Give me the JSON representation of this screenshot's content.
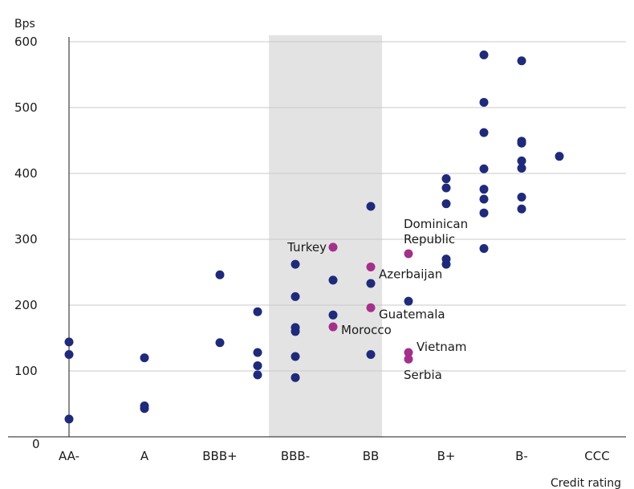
{
  "chart_data": {
    "type": "scatter",
    "ylabel": "Bps",
    "xlabel": "Credit rating",
    "categories": [
      "AA-",
      "A",
      "BBB+",
      "BBB-",
      "BB",
      "B+",
      "B-",
      "CCC"
    ],
    "ylim": [
      0,
      610
    ],
    "yticks": [
      0,
      100,
      200,
      300,
      400,
      500,
      600
    ],
    "grid": "horizontal",
    "highlight_band": {
      "from": 3.65,
      "to": 5.15,
      "color": "#e3e3e3"
    },
    "colors": {
      "default": "#1f2a7a",
      "highlight": "#a3318a"
    },
    "series": [
      {
        "points": [
          {
            "x": 1.0,
            "y": 144
          },
          {
            "x": 1.0,
            "y": 125
          },
          {
            "x": 1.0,
            "y": 27
          },
          {
            "x": 2.0,
            "y": 120
          },
          {
            "x": 2.0,
            "y": 47
          },
          {
            "x": 2.0,
            "y": 43
          },
          {
            "x": 3.0,
            "y": 246
          },
          {
            "x": 3.0,
            "y": 143
          },
          {
            "x": 3.5,
            "y": 190
          },
          {
            "x": 3.5,
            "y": 128
          },
          {
            "x": 3.5,
            "y": 108
          },
          {
            "x": 3.5,
            "y": 94
          },
          {
            "x": 4.0,
            "y": 262
          },
          {
            "x": 4.0,
            "y": 213
          },
          {
            "x": 4.0,
            "y": 166
          },
          {
            "x": 4.0,
            "y": 160
          },
          {
            "x": 4.0,
            "y": 122
          },
          {
            "x": 4.0,
            "y": 90
          },
          {
            "x": 4.5,
            "y": 238
          },
          {
            "x": 4.5,
            "y": 185
          },
          {
            "x": 5.0,
            "y": 350
          },
          {
            "x": 5.0,
            "y": 233
          },
          {
            "x": 5.0,
            "y": 125
          },
          {
            "x": 5.5,
            "y": 206
          },
          {
            "x": 6.0,
            "y": 392
          },
          {
            "x": 6.0,
            "y": 378
          },
          {
            "x": 6.0,
            "y": 354
          },
          {
            "x": 6.0,
            "y": 270
          },
          {
            "x": 6.0,
            "y": 262
          },
          {
            "x": 6.5,
            "y": 580
          },
          {
            "x": 6.5,
            "y": 508
          },
          {
            "x": 6.5,
            "y": 462
          },
          {
            "x": 6.5,
            "y": 407
          },
          {
            "x": 6.5,
            "y": 376
          },
          {
            "x": 6.5,
            "y": 361
          },
          {
            "x": 6.5,
            "y": 340
          },
          {
            "x": 6.5,
            "y": 286
          },
          {
            "x": 7.0,
            "y": 571
          },
          {
            "x": 7.0,
            "y": 449
          },
          {
            "x": 7.0,
            "y": 446
          },
          {
            "x": 7.0,
            "y": 419
          },
          {
            "x": 7.0,
            "y": 408
          },
          {
            "x": 7.0,
            "y": 364
          },
          {
            "x": 7.0,
            "y": 346
          },
          {
            "x": 7.5,
            "y": 426
          }
        ]
      },
      {
        "highlight": true,
        "points": [
          {
            "x": 4.5,
            "y": 288,
            "label": "Turkey"
          },
          {
            "x": 4.5,
            "y": 167,
            "label": "Morocco"
          },
          {
            "x": 5.0,
            "y": 258,
            "label": "Azerbaijan"
          },
          {
            "x": 5.0,
            "y": 196,
            "label": "Guatemala"
          },
          {
            "x": 5.5,
            "y": 278,
            "label": "Dominican Republic"
          },
          {
            "x": 5.5,
            "y": 128,
            "label": "Vietnam"
          },
          {
            "x": 5.5,
            "y": 118,
            "label": "Serbia"
          }
        ]
      }
    ]
  }
}
